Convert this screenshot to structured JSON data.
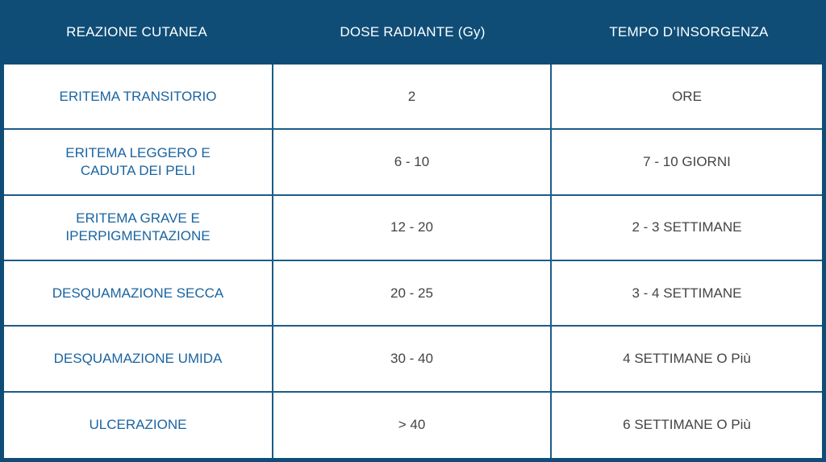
{
  "table": {
    "headers": [
      "REAZIONE CUTANEA",
      "DOSE RADIANTE (Gy)",
      "TEMPO D’INSORGENZA"
    ],
    "rows": [
      {
        "reaction": "ERITEMA TRANSITORIO",
        "dose": "2",
        "onset": "ORE"
      },
      {
        "reaction": "ERITEMA LEGGERO E CADUTA DEI PELI",
        "dose": "6 - 10",
        "onset": "7 - 10 GIORNI"
      },
      {
        "reaction": "ERITEMA GRAVE E IPERPIGMENTAZIONE",
        "dose": "12 - 20",
        "onset": "2 - 3 SETTIMANE"
      },
      {
        "reaction": "DESQUAMAZIONE SECCA",
        "dose": "20 - 25",
        "onset": "3 - 4 SETTIMANE"
      },
      {
        "reaction": "DESQUAMAZIONE UMIDA",
        "dose": "30 - 40",
        "onset": "4 SETTIMANE O Più"
      },
      {
        "reaction": "ULCERAZIONE",
        "dose": "> 40",
        "onset": "6 SETTIMANE O Più"
      }
    ]
  },
  "colors": {
    "header_bg": "#0f4d77",
    "reaction_text": "#1a64a0",
    "value_text": "#444444",
    "grid": "#1b5c8a"
  }
}
